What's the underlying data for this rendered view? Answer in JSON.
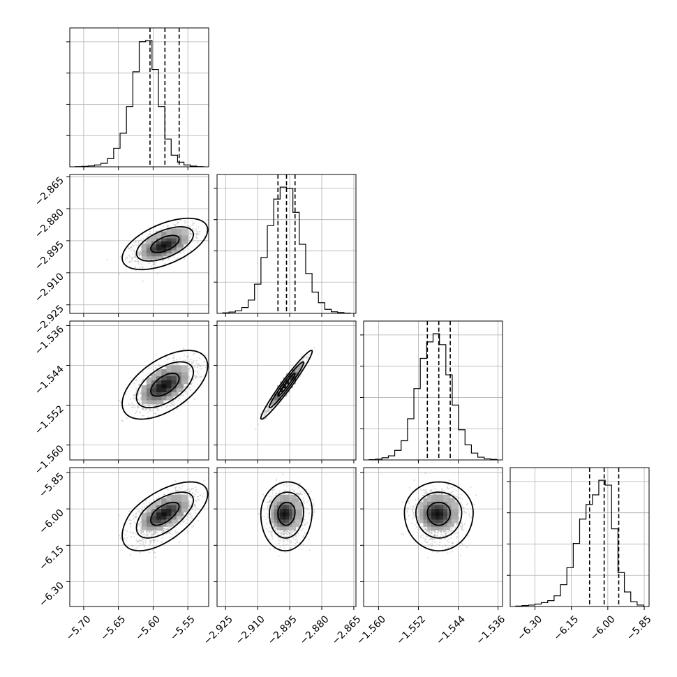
{
  "chart_data": {
    "type": "corner",
    "parameters": [
      {
        "index": 0,
        "mean": -5.583,
        "sd": 0.0205,
        "range": [
          -5.72,
          -5.52
        ],
        "ticks": [
          -5.7,
          -5.65,
          -5.6,
          -5.55
        ],
        "tick_labels": [
          "−5.70",
          "−5.65",
          "−5.60",
          "−5.55"
        ],
        "quantiles": [
          -5.6045,
          -5.583,
          -5.5625
        ]
      },
      {
        "index": 1,
        "mean": -2.8965,
        "sd": 0.004,
        "range": [
          -2.929,
          -2.864
        ],
        "ticks": [
          -2.925,
          -2.91,
          -2.895,
          -2.88,
          -2.865
        ],
        "tick_labels": [
          "−2.925",
          "−2.910",
          "−2.895",
          "−2.880",
          "−2.865"
        ],
        "quantiles": [
          -2.9005,
          -2.8965,
          -2.8925
        ]
      },
      {
        "index": 2,
        "mean": -1.5479,
        "sd": 0.0023,
        "range": [
          -1.563,
          -1.5351
        ],
        "ticks": [
          -1.56,
          -1.552,
          -1.544,
          -1.536
        ],
        "tick_labels": [
          "−1.560",
          "−1.552",
          "−1.544",
          "−1.536"
        ],
        "quantiles": [
          -1.5502,
          -1.5479,
          -1.5456
        ]
      },
      {
        "index": 3,
        "mean": -6.015,
        "sd": 0.042,
        "range": [
          -6.402,
          -5.83
        ],
        "ticks": [
          -6.3,
          -6.15,
          -6.0,
          -5.85
        ],
        "tick_labels": [
          "−6.30",
          "−6.15",
          "−6.00",
          "−5.85"
        ],
        "quantiles": [
          -6.075,
          -6.015,
          -5.955
        ]
      }
    ],
    "histograms": [
      {
        "param": 0,
        "bins": 20,
        "counts": [
          1,
          2,
          4,
          8,
          15,
          35,
          80,
          145,
          260,
          410,
          540,
          545,
          420,
          260,
          120,
          50,
          20,
          8,
          3,
          1
        ]
      },
      {
        "param": 1,
        "bins": 20,
        "counts": [
          2,
          5,
          10,
          22,
          50,
          110,
          210,
          330,
          430,
          475,
          470,
          380,
          260,
          150,
          80,
          40,
          15,
          6,
          3,
          1
        ]
      },
      {
        "param": 2,
        "bins": 20,
        "counts": [
          1,
          3,
          8,
          15,
          35,
          70,
          150,
          260,
          370,
          430,
          460,
          420,
          310,
          200,
          110,
          55,
          25,
          10,
          4,
          2
        ]
      },
      {
        "param": 3,
        "bins": 20,
        "counts": [
          1,
          2,
          3,
          5,
          8,
          12,
          22,
          45,
          80,
          130,
          180,
          210,
          230,
          260,
          250,
          160,
          70,
          30,
          10,
          3
        ]
      }
    ],
    "correlations": {
      "1,0": 0.55,
      "2,0": 0.55,
      "2,1": 0.97,
      "3,0": 0.6,
      "3,1": 0.05,
      "3,2": 0.0
    },
    "contour_levels": [
      0.393,
      0.865,
      0.989
    ],
    "quantiles_shown": [
      0.16,
      0.5,
      0.84
    ],
    "grid": true,
    "title": "",
    "axis_labels": []
  }
}
